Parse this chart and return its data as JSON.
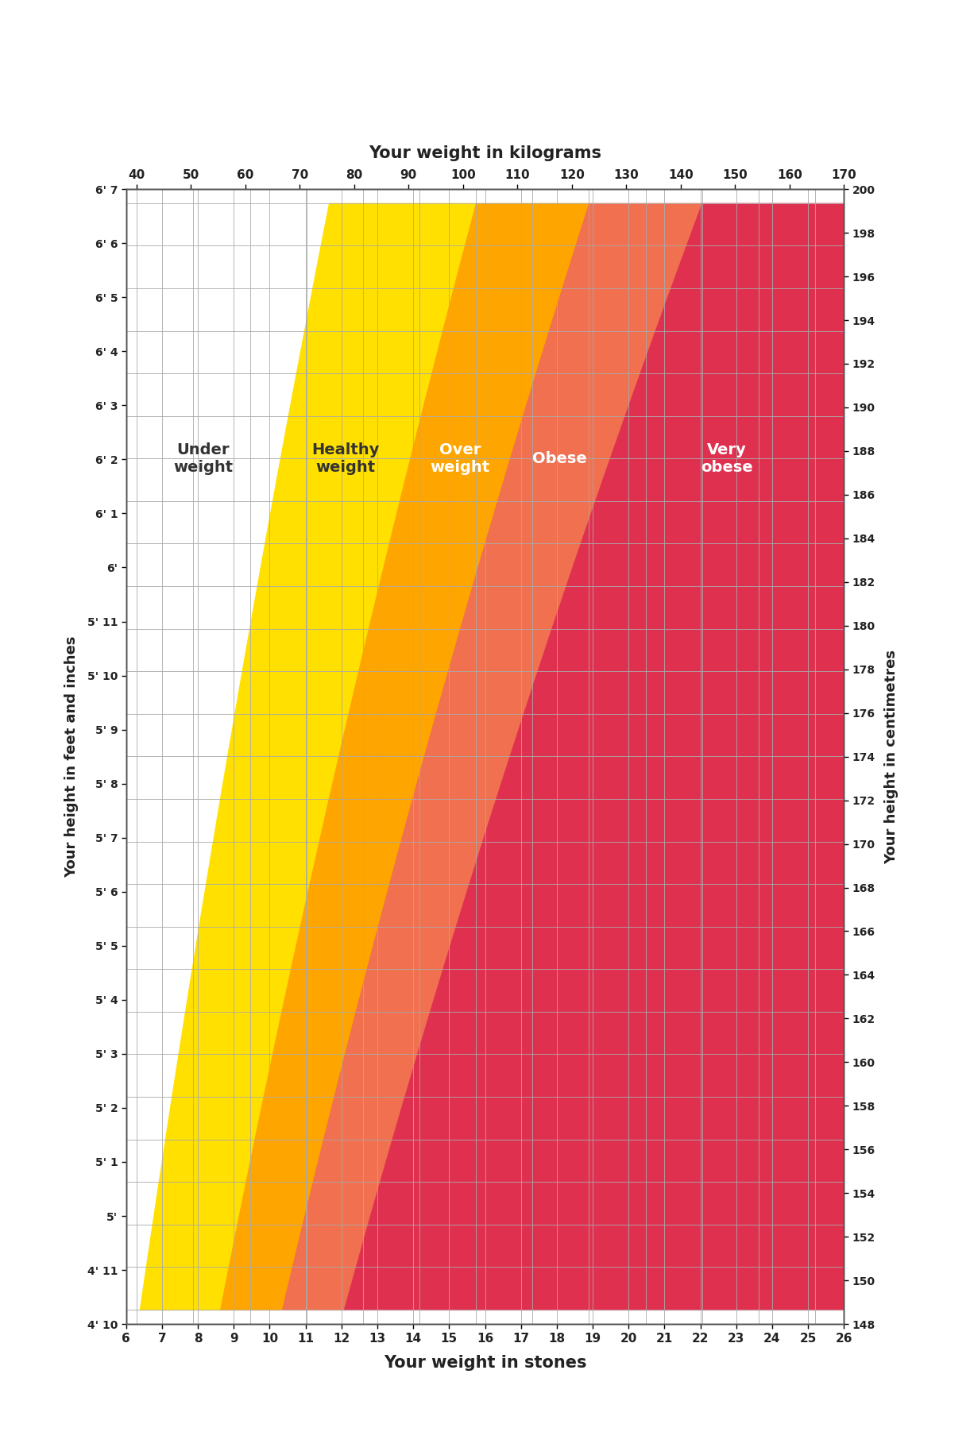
{
  "top_xlabel": "Your weight in kilograms",
  "bottom_xlabel": "Your weight in stones",
  "left_ylabel": "Your height in feet and inches",
  "right_ylabel": "Your height in centimetres",
  "kg_ticks": [
    40,
    50,
    60,
    70,
    80,
    90,
    100,
    110,
    120,
    130,
    140,
    150,
    160,
    170
  ],
  "stones_ticks": [
    6,
    7,
    8,
    9,
    10,
    11,
    12,
    13,
    14,
    15,
    16,
    17,
    18,
    19,
    20,
    21,
    22,
    23,
    24,
    25,
    26
  ],
  "height_ft_labels": [
    "4' 10",
    "4' 11",
    "5'",
    "5' 1",
    "5' 2",
    "5' 3",
    "5' 4",
    "5' 5",
    "5' 6",
    "5' 7",
    "5' 8",
    "5' 9",
    "5' 10",
    "5' 11",
    "6'",
    "6' 1",
    "6' 2",
    "6' 3",
    "6' 4",
    "6' 5",
    "6' 6",
    "6' 7"
  ],
  "height_cm_values": [
    148,
    150,
    152,
    154,
    156,
    158,
    160,
    162,
    164,
    166,
    168,
    170,
    172,
    174,
    176,
    178,
    180,
    182,
    184,
    186,
    188,
    190,
    192,
    194,
    196,
    198,
    200
  ],
  "color_underweight": "#FFFFFF",
  "color_healthy": "#FFE000",
  "color_overweight": "#FFA500",
  "color_obese": "#F07050",
  "color_very_obese": "#E03050",
  "grid_color": "#AAAAAA",
  "bmi_underweight_healthy": 18.5,
  "bmi_healthy_overweight": 25.0,
  "bmi_overweight_obese": 30.0,
  "bmi_obese_very_obese": 35.0,
  "cm_min": 148,
  "cm_max": 200,
  "stones_min": 6,
  "stones_max": 26,
  "kg_stone": 6.35029318
}
